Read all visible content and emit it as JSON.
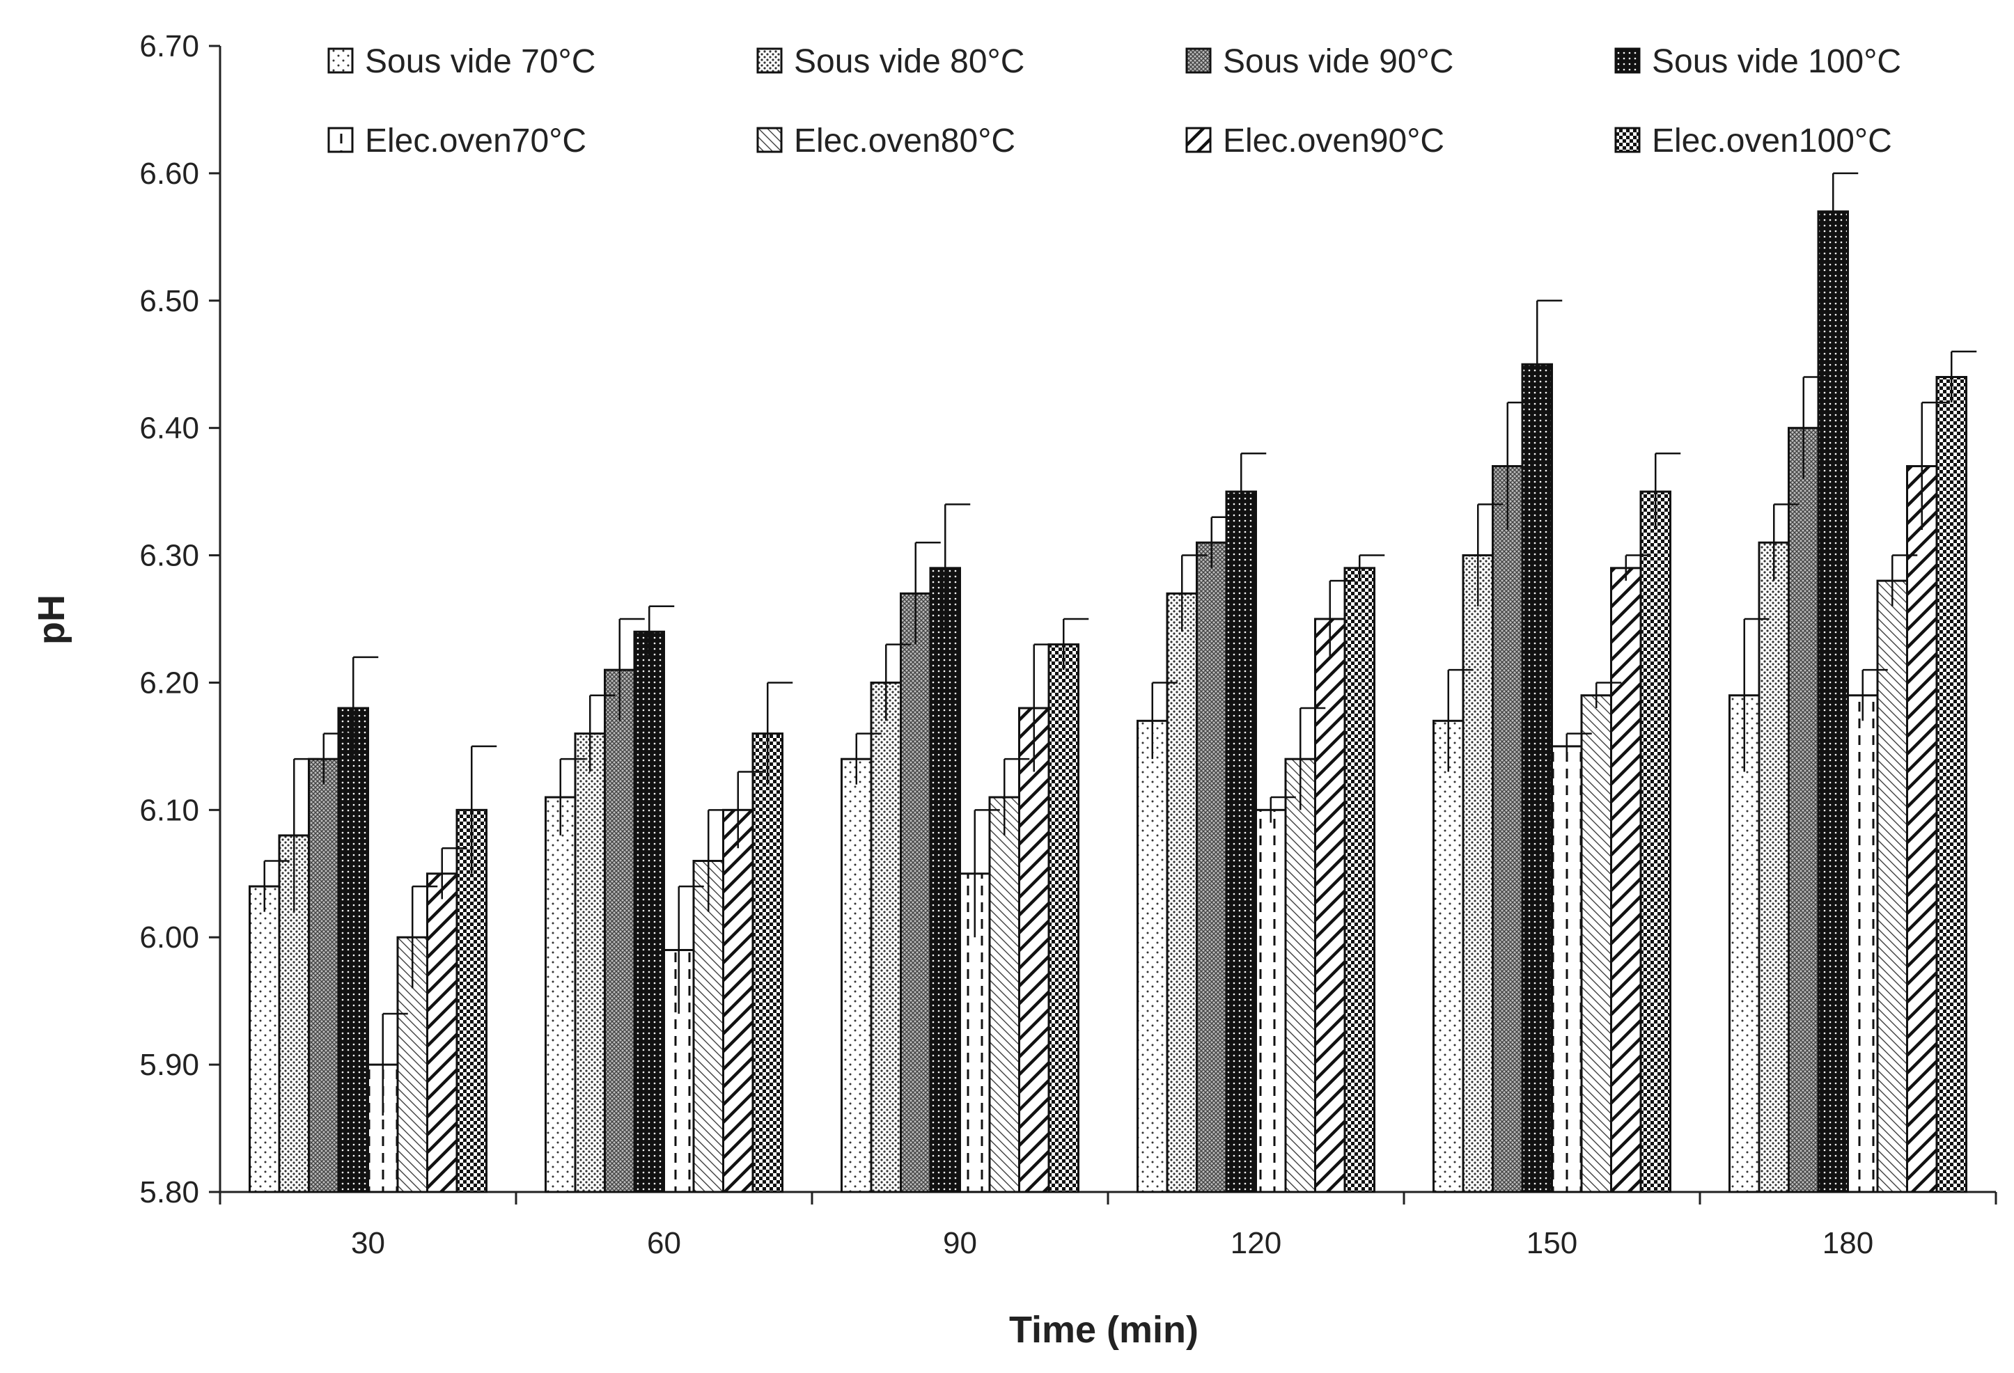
{
  "chart_data": {
    "type": "bar",
    "title": "",
    "xlabel": "Time (min)",
    "ylabel": "pH",
    "ylim": [
      5.8,
      6.7
    ],
    "yticks": [
      "5.80",
      "5.90",
      "6.00",
      "6.10",
      "6.20",
      "6.30",
      "6.40",
      "6.50",
      "6.60",
      "6.70"
    ],
    "categories": [
      "30",
      "60",
      "90",
      "120",
      "150",
      "180"
    ],
    "grid": false,
    "legend_position": "top",
    "series": [
      {
        "name": "Sous vide 70°C",
        "pattern": "dots-sparse",
        "values": [
          6.04,
          6.11,
          6.14,
          6.17,
          6.17,
          6.19
        ],
        "errors": [
          0.02,
          0.03,
          0.02,
          0.03,
          0.04,
          0.06
        ]
      },
      {
        "name": "Sous vide 80°C",
        "pattern": "dots-dense",
        "values": [
          6.08,
          6.16,
          6.2,
          6.27,
          6.3,
          6.31
        ],
        "errors": [
          0.06,
          0.03,
          0.03,
          0.03,
          0.04,
          0.03
        ]
      },
      {
        "name": "Sous vide 90°C",
        "pattern": "crosshatch",
        "values": [
          6.14,
          6.21,
          6.27,
          6.31,
          6.37,
          6.4
        ],
        "errors": [
          0.02,
          0.04,
          0.04,
          0.02,
          0.05,
          0.04
        ]
      },
      {
        "name": "Sous vide 100°C",
        "pattern": "black-dots",
        "values": [
          6.18,
          6.24,
          6.29,
          6.35,
          6.45,
          6.57
        ],
        "errors": [
          0.04,
          0.02,
          0.05,
          0.03,
          0.05,
          0.03
        ]
      },
      {
        "name": "Elec.oven70°C",
        "pattern": "dashed-vertical",
        "values": [
          5.9,
          5.99,
          6.05,
          6.1,
          6.15,
          6.19
        ],
        "errors": [
          0.04,
          0.05,
          0.05,
          0.01,
          0.01,
          0.02
        ]
      },
      {
        "name": "Elec.oven80°C",
        "pattern": "thin-diagonal",
        "values": [
          6.0,
          6.06,
          6.11,
          6.14,
          6.19,
          6.28
        ],
        "errors": [
          0.04,
          0.04,
          0.03,
          0.04,
          0.01,
          0.02
        ]
      },
      {
        "name": "Elec.oven90°C",
        "pattern": "thick-diagonal",
        "values": [
          6.05,
          6.1,
          6.18,
          6.25,
          6.29,
          6.37
        ],
        "errors": [
          0.02,
          0.03,
          0.05,
          0.03,
          0.01,
          0.05
        ]
      },
      {
        "name": "Elec.oven100°C",
        "pattern": "checker",
        "values": [
          6.1,
          6.16,
          6.23,
          6.29,
          6.35,
          6.44
        ],
        "errors": [
          0.05,
          0.04,
          0.02,
          0.01,
          0.03,
          0.02
        ]
      }
    ]
  }
}
